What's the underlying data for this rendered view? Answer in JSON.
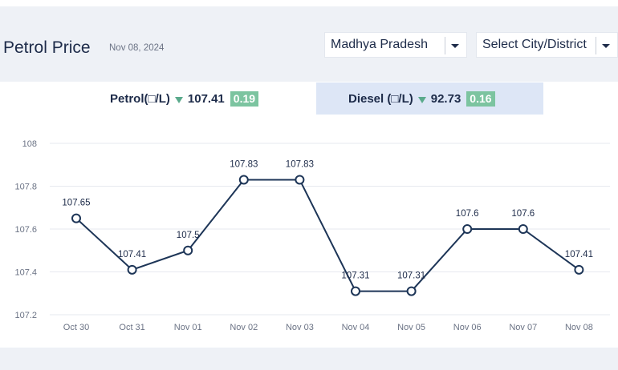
{
  "header": {
    "title": "Petrol Price",
    "date": "Nov 08, 2024",
    "state_select": {
      "value": "Madhya Pradesh"
    },
    "city_select": {
      "value": "Select City/District"
    }
  },
  "tabs": [
    {
      "label": "Petrol(□/L)",
      "price": "107.41",
      "change": "0.19",
      "direction": "down"
    },
    {
      "label": "Diesel (□/L)",
      "price": "92.73",
      "change": "0.16",
      "direction": "down"
    }
  ],
  "colors": {
    "line": "#1d3557",
    "badge": "#7cc4a0",
    "down_arrow": "#5aaa8c",
    "active_tab": "#ffffff",
    "inactive_tab": "#dde6f6"
  },
  "chart_data": {
    "type": "line",
    "categories": [
      "Oct 30",
      "Oct 31",
      "Nov 01",
      "Nov 02",
      "Nov 03",
      "Nov 04",
      "Nov 05",
      "Nov 06",
      "Nov 07",
      "Nov 08"
    ],
    "values": [
      107.65,
      107.41,
      107.5,
      107.83,
      107.83,
      107.31,
      107.31,
      107.6,
      107.6,
      107.41
    ],
    "data_labels": [
      "107.65",
      "107.41",
      "107.5",
      "107.83",
      "107.83",
      "107.31",
      "107.31",
      "107.6",
      "107.6",
      "107.41"
    ],
    "yticks": [
      "108",
      "107.8",
      "107.6",
      "107.4",
      "107.2"
    ],
    "ylim": [
      107.2,
      108
    ],
    "grid": true,
    "legend": "none"
  }
}
